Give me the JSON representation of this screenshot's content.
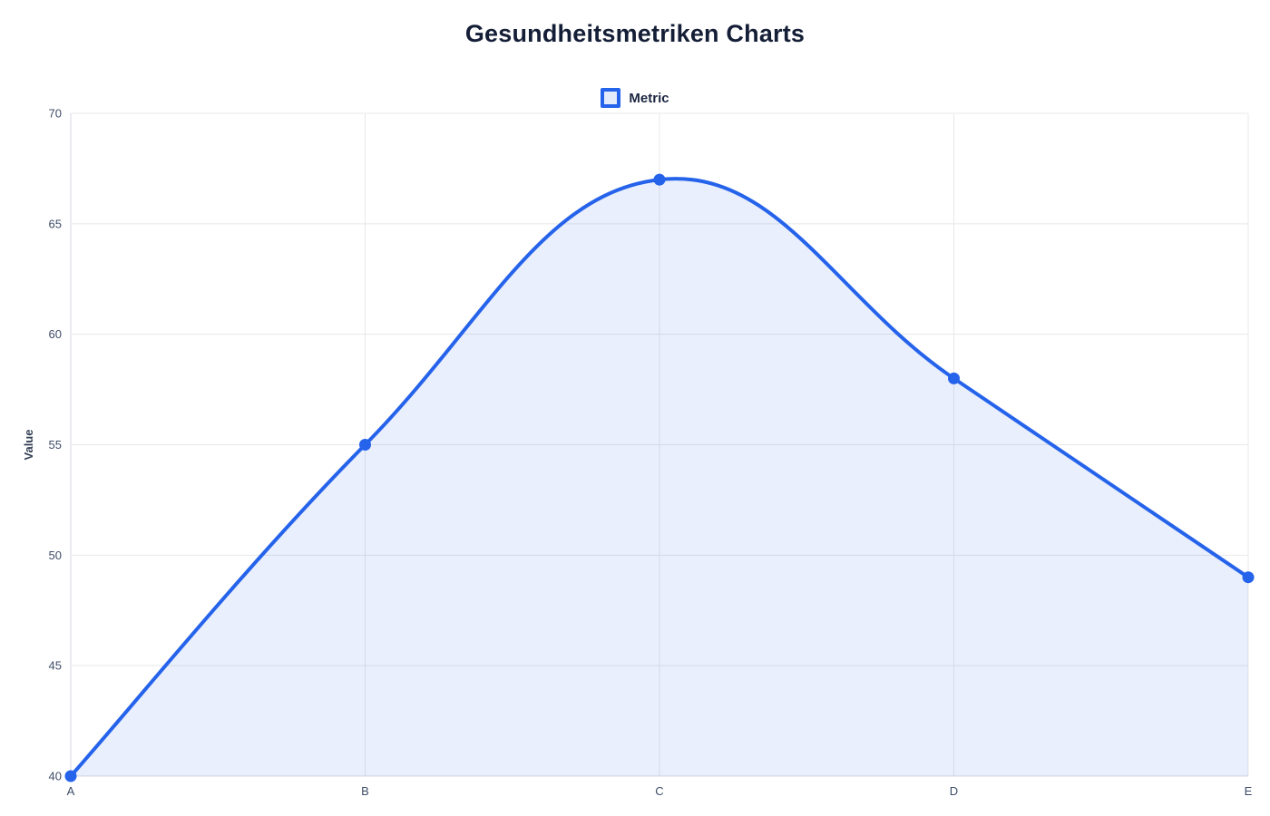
{
  "title": "Gesundheitsmetriken Charts",
  "legend": {
    "items": [
      {
        "label": "Metric",
        "swatch_color": "#2563eb"
      }
    ]
  },
  "colors": {
    "line": "#2563eb",
    "fill": "rgba(37,99,235,0.10)",
    "grid": "#e8e8e8",
    "axis": "#d4d9e1",
    "tick_text": "#3e4c68",
    "axis_title_text": "#333f55",
    "title_text": "#141e36"
  },
  "chart_data": {
    "type": "area",
    "title": "Gesundheitsmetriken Charts",
    "categories": [
      "A",
      "B",
      "C",
      "D",
      "E"
    ],
    "series": [
      {
        "name": "Metric",
        "values": [
          40,
          55,
          67,
          58,
          49
        ]
      }
    ],
    "xlabel": "",
    "ylabel": "Value",
    "ylim": [
      40,
      70
    ],
    "yticks": [
      40,
      45,
      50,
      55,
      60,
      65,
      70
    ],
    "grid": true,
    "smooth": true,
    "legend_position": "top",
    "marker_radius": 6.5,
    "line_width": 4
  }
}
